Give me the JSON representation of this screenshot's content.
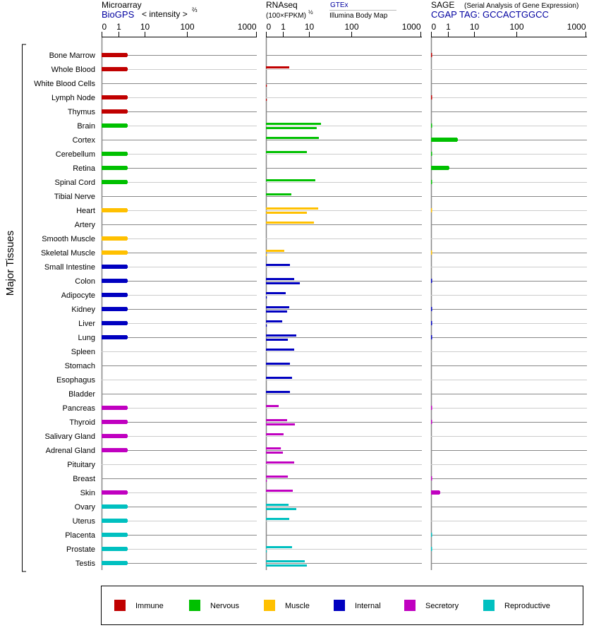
{
  "header": {
    "microarray": {
      "title": "Microarray",
      "source": "BioGPS",
      "unit": "< intensity >",
      "unit_exp": "⅔"
    },
    "rnaseq": {
      "title": "RNAseq",
      "unit": "(100×FPKM)",
      "unit_exp": "½",
      "source_top": "GTEx",
      "source_bottom": "Illumina Body Map"
    },
    "sage": {
      "title": "SAGE",
      "subtitle": "(Serial Analysis of Gene Expression)",
      "tag": "CGAP TAG: GCCACTGGCC"
    }
  },
  "y_axis_label": "Major Tissues",
  "colors": {
    "Immune": "#c00000",
    "Nervous": "#00c000",
    "Muscle": "#ffc000",
    "Internal": "#0000c0",
    "Secretory": "#c000c0",
    "Reproductive": "#00c0c0"
  },
  "legend": [
    "Immune",
    "Nervous",
    "Muscle",
    "Internal",
    "Secretory",
    "Reproductive"
  ],
  "chart_data": {
    "type": "bar",
    "orientation": "horizontal",
    "panels": [
      "Microarray",
      "RNAseq",
      "SAGE"
    ],
    "tick_labels": [
      "0",
      "1",
      "10",
      "100",
      "1000"
    ],
    "ticks": [
      0,
      1,
      10,
      100,
      1000
    ],
    "scale": "piecewise-log",
    "series_note": "RNAseq has two series per tissue: GTEx (upper) and Illumina Body Map (lower)",
    "tissues": [
      {
        "name": "Bone Marrow",
        "cat": "Immune",
        "micro": 2.11,
        "gtex": null,
        "illumina": null,
        "sage": 0.05
      },
      {
        "name": "Whole Blood",
        "cat": "Immune",
        "micro": 2.11,
        "gtex": 1.75,
        "illumina": null,
        "sage": null
      },
      {
        "name": "White Blood Cells",
        "cat": "Immune",
        "micro": null,
        "gtex": null,
        "illumina": 0.05,
        "sage": null
      },
      {
        "name": "Lymph Node",
        "cat": "Immune",
        "micro": 2.11,
        "gtex": null,
        "illumina": 0.05,
        "sage": 0.05
      },
      {
        "name": "Thymus",
        "cat": "Immune",
        "micro": 2.11,
        "gtex": null,
        "illumina": null,
        "sage": null
      },
      {
        "name": "Brain",
        "cat": "Nervous",
        "micro": 2.11,
        "gtex": 19.2,
        "illumina": 15.2,
        "sage": 0.05
      },
      {
        "name": "Cortex",
        "cat": "Nervous",
        "micro": null,
        "gtex": 17.1,
        "illumina": null,
        "sage": 2.24
      },
      {
        "name": "Cerebellum",
        "cat": "Nervous",
        "micro": 2.11,
        "gtex": 8.3,
        "illumina": null,
        "sage": 0.05
      },
      {
        "name": "Retina",
        "cat": "Nervous",
        "micro": 2.11,
        "gtex": null,
        "illumina": null,
        "sage": 1.06
      },
      {
        "name": "Spinal Cord",
        "cat": "Nervous",
        "micro": 2.11,
        "gtex": 14.1,
        "illumina": null,
        "sage": 0.05
      },
      {
        "name": "Tibial Nerve",
        "cat": "Nervous",
        "micro": null,
        "gtex": 2.11,
        "illumina": null,
        "sage": null
      },
      {
        "name": "Heart",
        "cat": "Muscle",
        "micro": 2.11,
        "gtex": 16.5,
        "illumina": 8.3,
        "sage": 0.05
      },
      {
        "name": "Artery",
        "cat": "Muscle",
        "micro": null,
        "gtex": 13.1,
        "illumina": null,
        "sage": null
      },
      {
        "name": "Smooth Muscle",
        "cat": "Muscle",
        "micro": 2.11,
        "gtex": null,
        "illumina": null,
        "sage": null
      },
      {
        "name": "Skeletal Muscle",
        "cat": "Muscle",
        "micro": 2.11,
        "gtex": 1.13,
        "illumina": 0.05,
        "sage": 0.05
      },
      {
        "name": "Small Intestine",
        "cat": "Internal",
        "micro": 2.11,
        "gtex": 1.86,
        "illumina": null,
        "sage": null
      },
      {
        "name": "Colon",
        "cat": "Internal",
        "micro": 2.11,
        "gtex": 2.71,
        "illumina": 4.46,
        "sage": 0.05
      },
      {
        "name": "Adipocyte",
        "cat": "Internal",
        "micro": 2.11,
        "gtex": 1.28,
        "illumina": 0.05,
        "sage": null
      },
      {
        "name": "Kidney",
        "cat": "Internal",
        "micro": 2.11,
        "gtex": 1.75,
        "illumina": 1.45,
        "sage": 0.05
      },
      {
        "name": "Liver",
        "cat": "Internal",
        "micro": 2.11,
        "gtex": 0.96,
        "illumina": 0.05,
        "sage": 0.05
      },
      {
        "name": "Lung",
        "cat": "Internal",
        "micro": 2.11,
        "gtex": 3.26,
        "illumina": 1.55,
        "sage": 0.05
      },
      {
        "name": "Spleen",
        "cat": "Internal",
        "micro": null,
        "gtex": 2.71,
        "illumina": null,
        "sage": null
      },
      {
        "name": "Stomach",
        "cat": "Internal",
        "micro": null,
        "gtex": 1.86,
        "illumina": null,
        "sage": null
      },
      {
        "name": "Esophagus",
        "cat": "Internal",
        "micro": null,
        "gtex": 2.24,
        "illumina": null,
        "sage": null
      },
      {
        "name": "Bladder",
        "cat": "Internal",
        "micro": null,
        "gtex": 1.86,
        "illumina": null,
        "sage": null
      },
      {
        "name": "Pancreas",
        "cat": "Secretory",
        "micro": 2.11,
        "gtex": 0.75,
        "illumina": null,
        "sage": 0.05
      },
      {
        "name": "Thyroid",
        "cat": "Secretory",
        "micro": 2.11,
        "gtex": 1.45,
        "illumina": 2.88,
        "sage": 0.05
      },
      {
        "name": "Salivary Gland",
        "cat": "Secretory",
        "micro": 2.11,
        "gtex": 1.06,
        "illumina": null,
        "sage": null
      },
      {
        "name": "Adrenal Gland",
        "cat": "Secretory",
        "micro": 2.11,
        "gtex": 0.88,
        "illumina": 1.0,
        "sage": null
      },
      {
        "name": "Pituitary",
        "cat": "Secretory",
        "micro": null,
        "gtex": 2.71,
        "illumina": null,
        "sage": null
      },
      {
        "name": "Breast",
        "cat": "Secretory",
        "micro": null,
        "gtex": 1.55,
        "illumina": 0.05,
        "sage": 0.05
      },
      {
        "name": "Skin",
        "cat": "Secretory",
        "micro": 2.11,
        "gtex": 2.39,
        "illumina": null,
        "sage": 0.5
      },
      {
        "name": "Ovary",
        "cat": "Reproductive",
        "micro": 2.11,
        "gtex": 1.65,
        "illumina": 3.26,
        "sage": null
      },
      {
        "name": "Uterus",
        "cat": "Reproductive",
        "micro": 2.11,
        "gtex": 1.75,
        "illumina": null,
        "sage": null
      },
      {
        "name": "Placenta",
        "cat": "Reproductive",
        "micro": 2.11,
        "gtex": null,
        "illumina": null,
        "sage": 0.05
      },
      {
        "name": "Prostate",
        "cat": "Reproductive",
        "micro": 2.11,
        "gtex": 2.24,
        "illumina": 0.05,
        "sage": 0.05
      },
      {
        "name": "Testis",
        "cat": "Reproductive",
        "micro": 2.11,
        "gtex": 6.88,
        "illumina": 8.3,
        "sage": null
      }
    ]
  }
}
